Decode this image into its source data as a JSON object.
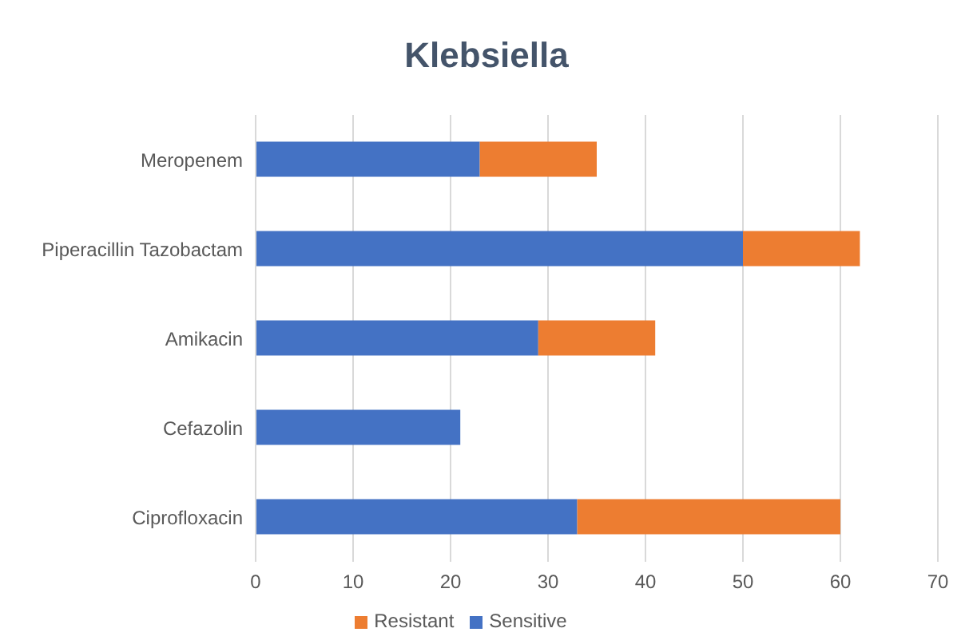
{
  "chart_data": {
    "type": "bar",
    "title": "Klebsiella",
    "orientation": "horizontal",
    "stacked": true,
    "categories": [
      "Meropenem",
      "Piperacillin Tazobactam",
      "Amikacin",
      "Cefazolin",
      "Ciprofloxacin"
    ],
    "series": [
      {
        "name": "Sensitive",
        "color": "#4472c4",
        "values": [
          23,
          50,
          29,
          21,
          33
        ]
      },
      {
        "name": "Resistant",
        "color": "#ed7d31",
        "values": [
          12,
          12,
          12,
          0,
          27
        ]
      }
    ],
    "xlim": [
      0,
      70
    ],
    "xticks": [
      0,
      10,
      20,
      30,
      40,
      50,
      60,
      70
    ],
    "grid": "x",
    "legend": "bottom"
  }
}
